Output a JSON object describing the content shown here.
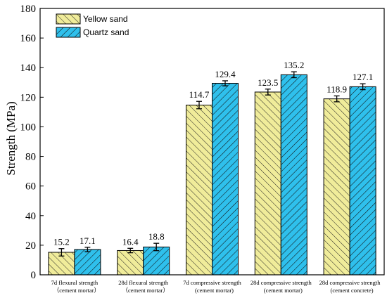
{
  "chart_data": {
    "type": "bar",
    "ylabel": "Strength (MPa)",
    "xlabel": "",
    "ylim": [
      0,
      180
    ],
    "yticks": [
      0,
      20,
      40,
      60,
      80,
      100,
      120,
      140,
      160,
      180
    ],
    "legend_position": "top-left",
    "categories": [
      [
        "7d flexural strength",
        "（cement mortar）"
      ],
      [
        "28d flexural strength",
        "（cement mortar）"
      ],
      [
        "7d compressive strength",
        "(cement mortar)"
      ],
      [
        "28d compressive strength",
        "(cement mortar)"
      ],
      [
        "28d compressive strength",
        "(cement concrete)"
      ]
    ],
    "series": [
      {
        "name": "Yellow sand",
        "color": "#f0ec9a",
        "pattern": "backslash-hatch",
        "values": [
          15.2,
          16.4,
          114.7,
          123.5,
          118.9
        ],
        "labels": [
          "15.2",
          "16.4",
          "114.7",
          "123.5",
          "118.9"
        ],
        "errors": [
          2.5,
          1.5,
          2.5,
          2.0,
          2.0
        ]
      },
      {
        "name": "Quartz sand",
        "color": "#2fc0ec",
        "pattern": "slash-hatch",
        "values": [
          17.1,
          18.8,
          129.4,
          135.2,
          127.1
        ],
        "labels": [
          "17.1",
          "18.8",
          "129.4",
          "135.2",
          "127.1"
        ],
        "errors": [
          1.5,
          2.5,
          1.7,
          2.0,
          2.0
        ]
      }
    ]
  }
}
